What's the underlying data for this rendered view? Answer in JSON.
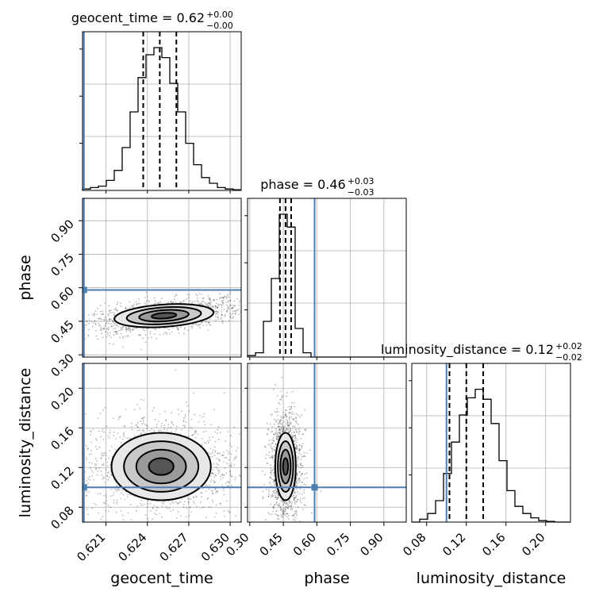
{
  "chart_data": {
    "type": "corner",
    "parameters": [
      "geocent_time",
      "phase",
      "luminosity_distance"
    ],
    "axis_labels": [
      "geocent_time",
      "phase",
      "luminosity_distance"
    ],
    "titles": [
      {
        "label": "geocent_time = 0.62",
        "sup": "+0.00",
        "sub": "−0.00"
      },
      {
        "label": "phase = 0.46",
        "sup": "+0.03",
        "sub": "−0.03"
      },
      {
        "label": "luminosity_distance = 0.12",
        "sup": "+0.02",
        "sub": "−0.02"
      }
    ],
    "ranges": {
      "geocent_time": [
        0.6193,
        0.6308
      ],
      "phase": [
        0.29,
        1.0
      ],
      "luminosity_distance": [
        0.065,
        0.225
      ]
    },
    "ticks": {
      "geocent_time": [
        "0.621",
        "0.624",
        "0.627",
        "0.630"
      ],
      "phase": [
        "0.30",
        "0.45",
        "0.60",
        "0.75",
        "0.90"
      ],
      "luminosity_distance": [
        "0.08",
        "0.12",
        "0.16",
        "0.20"
      ]
    },
    "truths": {
      "geocent_time": 0.6194,
      "phase": 0.59,
      "luminosity_distance": 0.1
    },
    "quantiles": {
      "geocent_time": [
        0.6237,
        0.6249,
        0.6261
      ],
      "phase": [
        0.435,
        0.46,
        0.485
      ],
      "luminosity_distance": [
        0.103,
        0.12,
        0.137
      ]
    },
    "histograms": {
      "geocent_time": [
        0.01,
        0.02,
        0.03,
        0.07,
        0.14,
        0.3,
        0.55,
        0.79,
        0.95,
        1.0,
        0.93,
        0.75,
        0.55,
        0.33,
        0.18,
        0.09,
        0.05,
        0.02,
        0.01,
        0.005
      ],
      "phase": [
        0.01,
        0.03,
        0.25,
        0.55,
        1.0,
        0.91,
        0.2,
        0.03,
        0.0,
        0.0,
        0.0,
        0.0,
        0.0,
        0.0,
        0.0,
        0.0,
        0.0,
        0.0,
        0.0,
        0.0
      ],
      "luminosity_distance": [
        0.0,
        0.02,
        0.06,
        0.15,
        0.34,
        0.56,
        0.75,
        0.87,
        0.93,
        0.86,
        0.69,
        0.43,
        0.22,
        0.11,
        0.06,
        0.03,
        0.01,
        0.005,
        0.0,
        0.0
      ]
    },
    "posterior_2d": [
      {
        "x": "geocent_time",
        "y": "phase",
        "center": [
          0.6252,
          0.475
        ],
        "sd": [
          0.0018,
          0.025
        ],
        "corr": 0.5
      },
      {
        "x": "geocent_time",
        "y": "luminosity_distance",
        "center": [
          0.625,
          0.121
        ],
        "sd": [
          0.0018,
          0.017
        ],
        "corr": 0.0
      },
      {
        "x": "phase",
        "y": "luminosity_distance",
        "center": [
          0.46,
          0.121
        ],
        "sd": [
          0.023,
          0.017
        ],
        "corr": 0.0
      }
    ]
  }
}
